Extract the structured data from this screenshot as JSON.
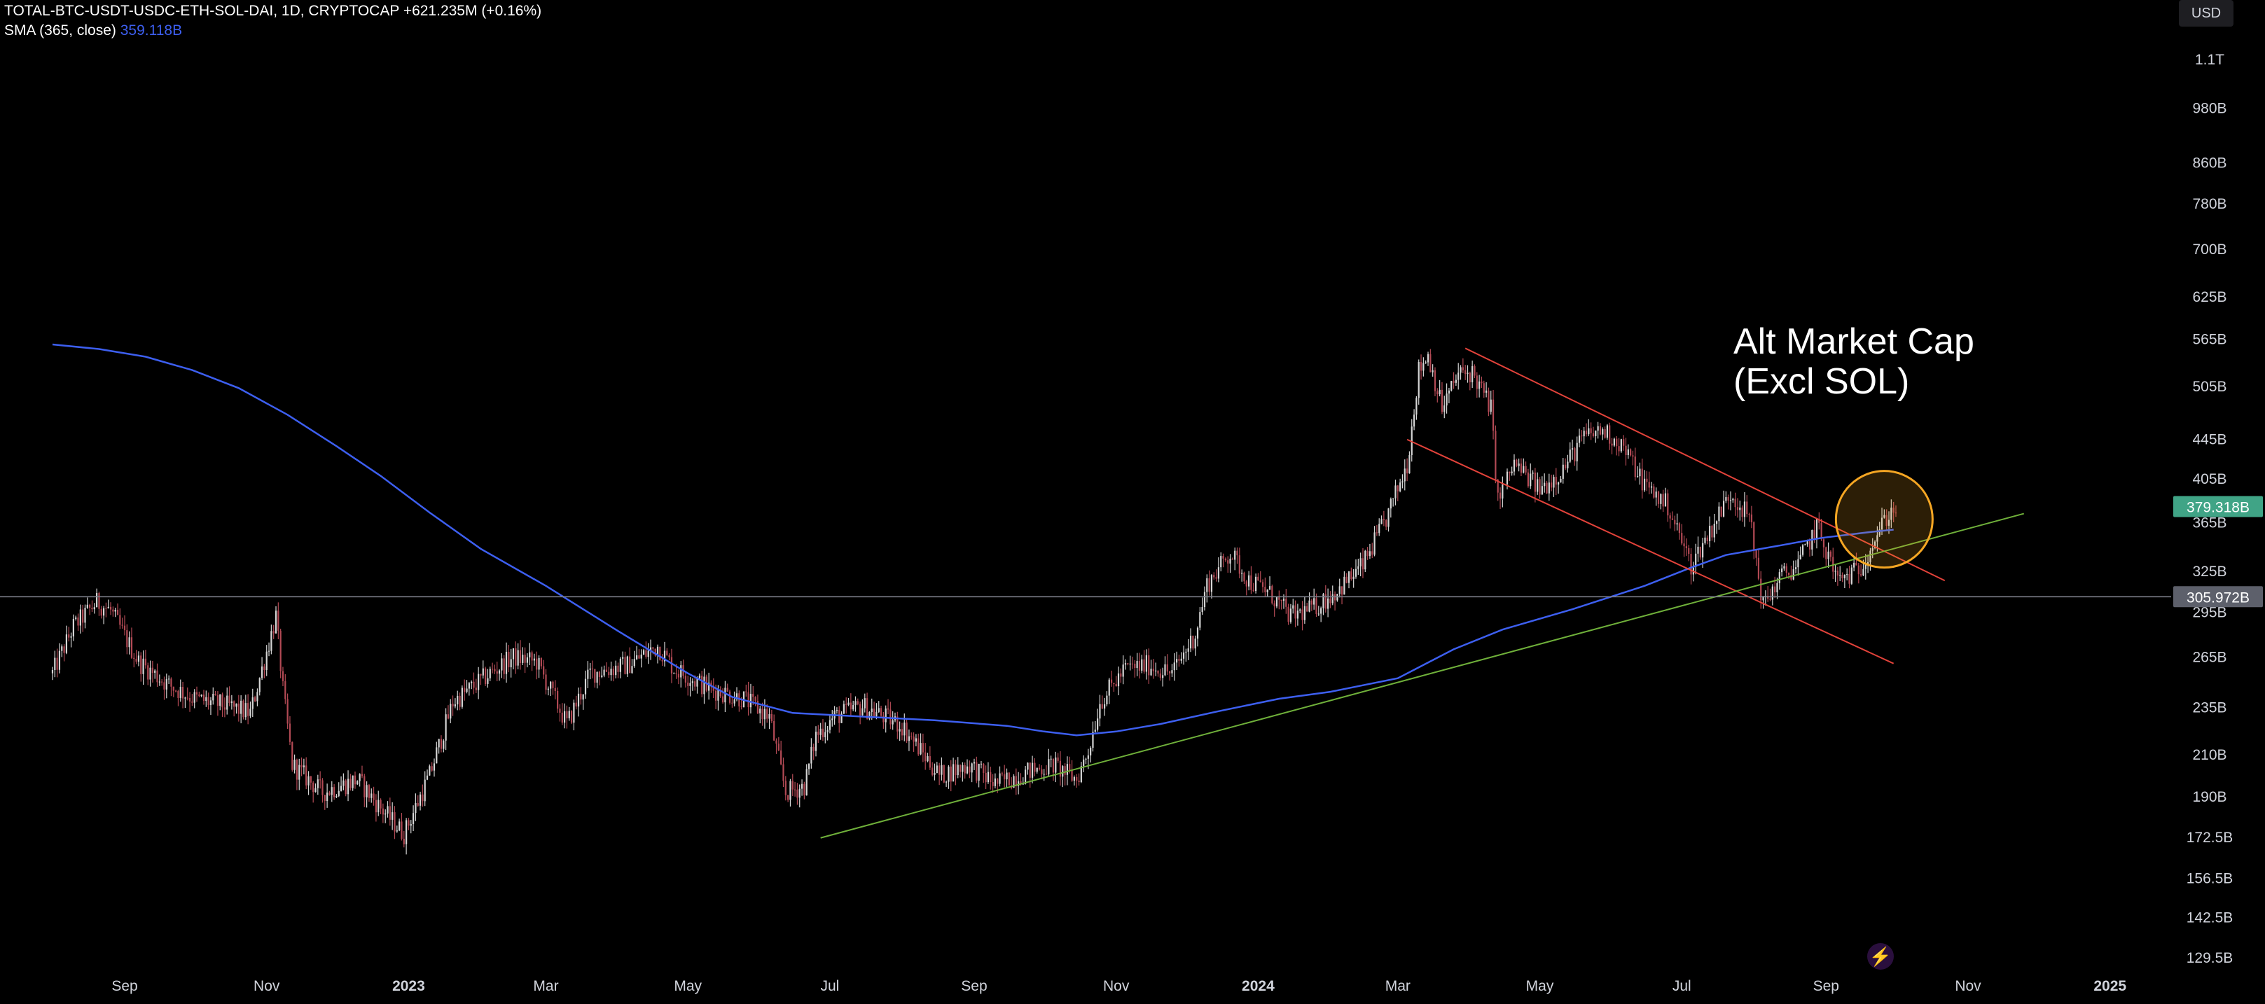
{
  "header": {
    "symbol_line": "TOTAL-BTC-USDT-USDC-ETH-SOL-DAI, 1D, CRYPTOCAP",
    "change": "+621.235M (+0.16%)",
    "indicator_label": "SMA (365, close)",
    "indicator_value": "359.118B"
  },
  "currency_button": "USD",
  "annotation": {
    "line1": "Alt Market Cap",
    "line2": "(Excl SOL)"
  },
  "colors": {
    "background": "#000000",
    "sma": "#3d5ff0",
    "resistance": "#e2423a",
    "support": "#6fb03a",
    "circle": "#f5a623",
    "candle_up": "#d6d6d6",
    "candle_down": "#b34a55",
    "price_tag": "#40a486",
    "crosshair_tag": "#5d606b"
  },
  "icons": {
    "brand": "bolt-icon"
  },
  "chart_data": {
    "type": "line",
    "scale": "log",
    "title": "",
    "xlabel": "",
    "ylabel": "",
    "y_ticks": [
      {
        "label": "1.1T",
        "value": 1100
      },
      {
        "label": "980B",
        "value": 980
      },
      {
        "label": "860B",
        "value": 860
      },
      {
        "label": "780B",
        "value": 780
      },
      {
        "label": "700B",
        "value": 700
      },
      {
        "label": "625B",
        "value": 625
      },
      {
        "label": "565B",
        "value": 565
      },
      {
        "label": "505B",
        "value": 505
      },
      {
        "label": "445B",
        "value": 445
      },
      {
        "label": "405B",
        "value": 405
      },
      {
        "label": "365B",
        "value": 365
      },
      {
        "label": "325B",
        "value": 325
      },
      {
        "label": "295B",
        "value": 295
      },
      {
        "label": "265B",
        "value": 265
      },
      {
        "label": "235B",
        "value": 235
      },
      {
        "label": "210B",
        "value": 210
      },
      {
        "label": "190B",
        "value": 190
      },
      {
        "label": "172.5B",
        "value": 172.5
      },
      {
        "label": "156.5B",
        "value": 156.5
      },
      {
        "label": "142.5B",
        "value": 142.5
      },
      {
        "label": "129.5B",
        "value": 129.5
      }
    ],
    "x_ticks": [
      {
        "label": "Sep",
        "date": "2022-09-01",
        "bold": false
      },
      {
        "label": "Nov",
        "date": "2022-11-01",
        "bold": false
      },
      {
        "label": "2023",
        "date": "2023-01-01",
        "bold": true
      },
      {
        "label": "Mar",
        "date": "2023-03-01",
        "bold": false
      },
      {
        "label": "May",
        "date": "2023-05-01",
        "bold": false
      },
      {
        "label": "Jul",
        "date": "2023-07-01",
        "bold": false
      },
      {
        "label": "Sep",
        "date": "2023-09-01",
        "bold": false
      },
      {
        "label": "Nov",
        "date": "2023-11-01",
        "bold": false
      },
      {
        "label": "2024",
        "date": "2024-01-01",
        "bold": true
      },
      {
        "label": "Mar",
        "date": "2024-03-01",
        "bold": false
      },
      {
        "label": "May",
        "date": "2024-05-01",
        "bold": false
      },
      {
        "label": "Jul",
        "date": "2024-07-01",
        "bold": false
      },
      {
        "label": "Sep",
        "date": "2024-09-01",
        "bold": false
      },
      {
        "label": "Nov",
        "date": "2024-11-01",
        "bold": false
      },
      {
        "label": "2025",
        "date": "2025-01-01",
        "bold": true
      }
    ],
    "price_tags": {
      "last": {
        "label": "379.318B",
        "value": 379.3
      },
      "crosshair": {
        "label": "305.972B",
        "value": 306.0
      }
    },
    "price_path": [
      [
        "2022-08-01",
        255
      ],
      [
        "2022-08-10",
        285
      ],
      [
        "2022-08-20",
        302
      ],
      [
        "2022-08-26",
        296
      ],
      [
        "2022-09-07",
        262
      ],
      [
        "2022-09-20",
        248
      ],
      [
        "2022-10-01",
        240
      ],
      [
        "2022-10-15",
        236
      ],
      [
        "2022-10-25",
        232
      ],
      [
        "2022-11-05",
        292
      ],
      [
        "2022-11-08",
        245
      ],
      [
        "2022-11-12",
        205
      ],
      [
        "2022-11-25",
        192
      ],
      [
        "2022-12-10",
        198
      ],
      [
        "2022-12-20",
        185
      ],
      [
        "2022-12-30",
        174
      ],
      [
        "2023-01-10",
        200
      ],
      [
        "2023-01-20",
        238
      ],
      [
        "2023-02-05",
        255
      ],
      [
        "2023-02-15",
        265
      ],
      [
        "2023-02-25",
        262
      ],
      [
        "2023-03-10",
        226
      ],
      [
        "2023-03-20",
        255
      ],
      [
        "2023-04-05",
        260
      ],
      [
        "2023-04-18",
        272
      ],
      [
        "2023-04-25",
        258
      ],
      [
        "2023-05-10",
        246
      ],
      [
        "2023-05-25",
        240
      ],
      [
        "2023-06-05",
        230
      ],
      [
        "2023-06-12",
        192
      ],
      [
        "2023-06-20",
        195
      ],
      [
        "2023-06-25",
        220
      ],
      [
        "2023-07-03",
        230
      ],
      [
        "2023-07-15",
        236
      ],
      [
        "2023-08-01",
        225
      ],
      [
        "2023-08-17",
        200
      ],
      [
        "2023-08-30",
        205
      ],
      [
        "2023-09-10",
        196
      ],
      [
        "2023-09-25",
        202
      ],
      [
        "2023-10-05",
        205
      ],
      [
        "2023-10-15",
        198
      ],
      [
        "2023-10-20",
        212
      ],
      [
        "2023-10-25",
        238
      ],
      [
        "2023-11-05",
        258
      ],
      [
        "2023-11-15",
        260
      ],
      [
        "2023-11-25",
        255
      ],
      [
        "2023-12-05",
        280
      ],
      [
        "2023-12-10",
        315
      ],
      [
        "2023-12-20",
        340
      ],
      [
        "2023-12-28",
        318
      ],
      [
        "2024-01-05",
        310
      ],
      [
        "2024-01-15",
        292
      ],
      [
        "2024-01-25",
        298
      ],
      [
        "2024-02-05",
        312
      ],
      [
        "2024-02-15",
        330
      ],
      [
        "2024-02-25",
        368
      ],
      [
        "2024-03-05",
        420
      ],
      [
        "2024-03-10",
        525
      ],
      [
        "2024-03-14",
        545
      ],
      [
        "2024-03-20",
        480
      ],
      [
        "2024-03-27",
        520
      ],
      [
        "2024-04-02",
        522
      ],
      [
        "2024-04-10",
        480
      ],
      [
        "2024-04-13",
        385
      ],
      [
        "2024-04-20",
        420
      ],
      [
        "2024-05-01",
        395
      ],
      [
        "2024-05-10",
        412
      ],
      [
        "2024-05-20",
        448
      ],
      [
        "2024-05-28",
        455
      ],
      [
        "2024-06-05",
        440
      ],
      [
        "2024-06-15",
        400
      ],
      [
        "2024-06-25",
        380
      ],
      [
        "2024-07-05",
        330
      ],
      [
        "2024-07-15",
        365
      ],
      [
        "2024-07-22",
        392
      ],
      [
        "2024-07-30",
        370
      ],
      [
        "2024-08-05",
        300
      ],
      [
        "2024-08-12",
        320
      ],
      [
        "2024-08-20",
        330
      ],
      [
        "2024-08-28",
        362
      ],
      [
        "2024-09-06",
        318
      ],
      [
        "2024-09-15",
        326
      ],
      [
        "2024-09-22",
        352
      ],
      [
        "2024-09-27",
        370
      ],
      [
        "2024-10-01",
        379
      ]
    ],
    "series": [
      {
        "name": "SMA (365, close)",
        "points": [
          [
            "2022-08-01",
            558
          ],
          [
            "2022-08-21",
            552
          ],
          [
            "2022-09-10",
            542
          ],
          [
            "2022-09-30",
            525
          ],
          [
            "2022-10-20",
            503
          ],
          [
            "2022-11-10",
            472
          ],
          [
            "2022-12-01",
            438
          ],
          [
            "2022-12-20",
            408
          ],
          [
            "2023-01-10",
            374
          ],
          [
            "2023-02-01",
            343
          ],
          [
            "2023-03-01",
            314
          ],
          [
            "2023-04-01",
            282
          ],
          [
            "2023-05-01",
            255
          ],
          [
            "2023-05-20",
            241
          ],
          [
            "2023-06-15",
            232
          ],
          [
            "2023-07-15",
            230
          ],
          [
            "2023-08-15",
            228
          ],
          [
            "2023-09-15",
            225
          ],
          [
            "2023-10-01",
            222
          ],
          [
            "2023-10-15",
            220
          ],
          [
            "2023-11-01",
            222
          ],
          [
            "2023-11-20",
            226
          ],
          [
            "2023-12-15",
            233
          ],
          [
            "2024-01-10",
            240
          ],
          [
            "2024-02-01",
            244
          ],
          [
            "2024-03-01",
            252
          ],
          [
            "2024-03-25",
            270
          ],
          [
            "2024-04-15",
            283
          ],
          [
            "2024-05-15",
            297
          ],
          [
            "2024-06-15",
            314
          ],
          [
            "2024-07-05",
            328
          ],
          [
            "2024-07-20",
            338
          ],
          [
            "2024-08-10",
            345
          ],
          [
            "2024-08-30",
            352
          ],
          [
            "2024-09-20",
            357
          ],
          [
            "2024-09-30",
            359
          ]
        ]
      }
    ],
    "drawings": [
      {
        "name": "Upper channel line",
        "color": "resistance",
        "from": [
          "2024-03-30",
          553
        ],
        "to": [
          "2024-10-22",
          318
        ]
      },
      {
        "name": "Lower channel line",
        "color": "resistance",
        "from": [
          "2024-03-05",
          445
        ],
        "to": [
          "2024-09-30",
          261
        ]
      },
      {
        "name": "Rising support line",
        "color": "support",
        "from": [
          "2023-06-27",
          172.3
        ],
        "to": [
          "2024-11-25",
          373
        ]
      },
      {
        "name": "Horizontal level",
        "color": "crosshair_tag",
        "value": 306.0
      }
    ],
    "circle": {
      "center": [
        "2024-09-26",
        368
      ]
    },
    "grid": false,
    "legend": "top-left"
  }
}
